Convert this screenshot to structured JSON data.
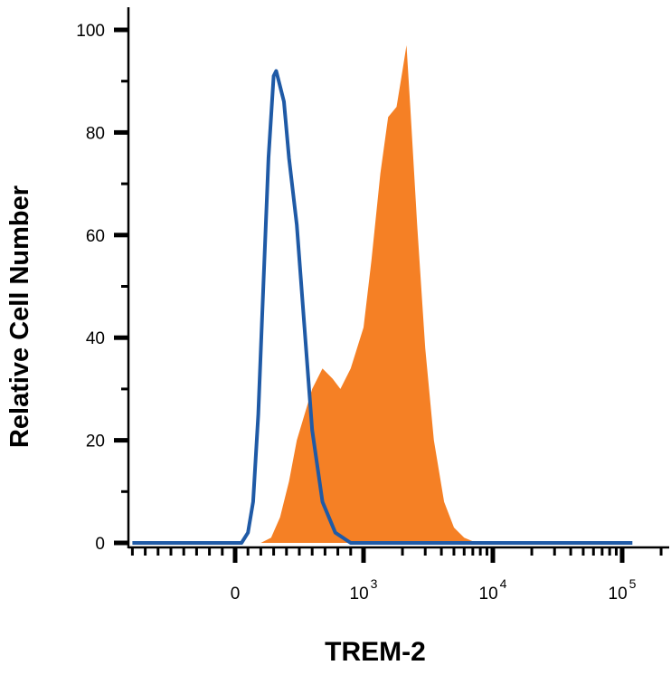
{
  "chart_data": {
    "type": "area",
    "title": "",
    "xlabel": "TREM-2",
    "ylabel": "Relative Cell Number",
    "ylim": [
      0,
      105
    ],
    "x_scale": "biexponential",
    "y_ticks": [
      0,
      20,
      40,
      60,
      80,
      100
    ],
    "x_ticks": [
      {
        "value": 0,
        "base": "0",
        "exp": ""
      },
      {
        "value": 1000,
        "base": "10",
        "exp": "3"
      },
      {
        "value": 10000,
        "base": "10",
        "exp": "4"
      },
      {
        "value": 100000,
        "base": "10",
        "exp": "5"
      }
    ],
    "grid": false,
    "series": [
      {
        "style": "outline",
        "color": "#1f5aa6",
        "points": [
          [
            -800,
            0
          ],
          [
            50,
            0
          ],
          [
            100,
            2
          ],
          [
            140,
            8
          ],
          [
            180,
            25
          ],
          [
            220,
            50
          ],
          [
            260,
            75
          ],
          [
            300,
            91
          ],
          [
            320,
            92
          ],
          [
            340,
            90
          ],
          [
            380,
            86
          ],
          [
            420,
            75
          ],
          [
            480,
            62
          ],
          [
            540,
            42
          ],
          [
            600,
            22
          ],
          [
            680,
            8
          ],
          [
            780,
            2
          ],
          [
            900,
            0
          ],
          [
            120000,
            0
          ]
        ]
      },
      {
        "style": "filled",
        "color": "#f58025",
        "points": [
          [
            -800,
            0
          ],
          [
            200,
            0
          ],
          [
            280,
            1
          ],
          [
            350,
            5
          ],
          [
            420,
            12
          ],
          [
            480,
            20
          ],
          [
            540,
            25
          ],
          [
            600,
            30
          ],
          [
            680,
            34
          ],
          [
            760,
            32
          ],
          [
            820,
            30
          ],
          [
            900,
            34
          ],
          [
            1000,
            42
          ],
          [
            1150,
            55
          ],
          [
            1350,
            72
          ],
          [
            1550,
            83
          ],
          [
            1800,
            85
          ],
          [
            2000,
            92
          ],
          [
            2150,
            97
          ],
          [
            2300,
            85
          ],
          [
            2600,
            62
          ],
          [
            3000,
            38
          ],
          [
            3500,
            20
          ],
          [
            4200,
            8
          ],
          [
            5000,
            3
          ],
          [
            6000,
            1
          ],
          [
            7500,
            0
          ],
          [
            120000,
            0
          ]
        ]
      }
    ]
  }
}
